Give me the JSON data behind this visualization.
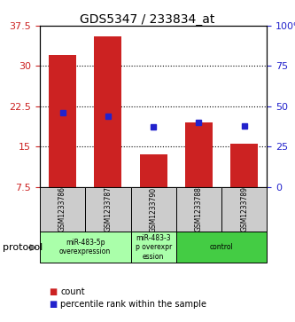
{
  "title": "GDS5347 / 233834_at",
  "samples": [
    "GSM1233786",
    "GSM1233787",
    "GSM1233790",
    "GSM1233788",
    "GSM1233789"
  ],
  "count_values": [
    32.0,
    35.5,
    13.5,
    19.5,
    15.5
  ],
  "percentile_values": [
    46,
    44,
    37,
    40,
    38
  ],
  "bar_bottom": 7.5,
  "ylim_left": [
    7.5,
    37.5
  ],
  "ylim_right": [
    0,
    100
  ],
  "yticks_left": [
    7.5,
    15.0,
    22.5,
    30.0,
    37.5
  ],
  "yticks_right": [
    0,
    25,
    50,
    75,
    100
  ],
  "ytick_labels_left": [
    "7.5",
    "15",
    "22.5",
    "30",
    "37.5"
  ],
  "ytick_labels_right": [
    "0",
    "25",
    "50",
    "75",
    "100%"
  ],
  "bar_color": "#cc2222",
  "percentile_color": "#2222cc",
  "protocol_label": "protocol",
  "legend_count_label": "count",
  "legend_percentile_label": "percentile rank within the sample",
  "background_plot": "#ffffff",
  "background_sample": "#cccccc",
  "left_label_color": "#cc2222",
  "right_label_color": "#2222cc",
  "proto_data": [
    {
      "label": "miR-483-5p\noverexpression",
      "start": 0,
      "end": 1,
      "color": "#aaffaa"
    },
    {
      "label": "miR-483-3\np overexpr\nession",
      "start": 2,
      "end": 2,
      "color": "#aaffaa"
    },
    {
      "label": "control",
      "start": 3,
      "end": 4,
      "color": "#44cc44"
    }
  ]
}
